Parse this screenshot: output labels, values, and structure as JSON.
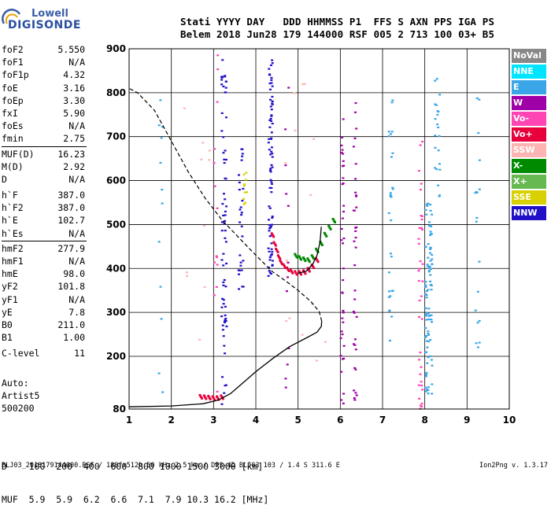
{
  "logo": {
    "line1": "Lowell",
    "line2": "DIGISONDE"
  },
  "header": {
    "line1": "Stati YYYY DAY   DDD HHMMSS P1  FFS S AXN PPS IGA PS",
    "line2": "Belem 2018 Jun28 179 144000 RSF 005 2 713 100 03+ B5"
  },
  "params": {
    "group1": [
      {
        "label": "foF2",
        "value": "5.550"
      },
      {
        "label": "foF1",
        "value": "N/A"
      },
      {
        "label": "foF1p",
        "value": "4.32"
      },
      {
        "label": "foE",
        "value": "3.16"
      },
      {
        "label": "foEp",
        "value": "3.30"
      },
      {
        "label": "fxI",
        "value": "5.90"
      },
      {
        "label": "foEs",
        "value": "N/A"
      },
      {
        "label": "fmin",
        "value": "2.75"
      }
    ],
    "group2": [
      {
        "label": "MUF(D)",
        "value": "16.23"
      },
      {
        "label": "M(D)",
        "value": "2.92"
      },
      {
        "label": "D",
        "value": "N/A"
      }
    ],
    "group3": [
      {
        "label": "h`F",
        "value": "387.0"
      },
      {
        "label": "h`F2",
        "value": "387.0"
      },
      {
        "label": "h`E",
        "value": "102.7"
      },
      {
        "label": "h`Es",
        "value": "N/A"
      }
    ],
    "group4": [
      {
        "label": "hmF2",
        "value": "277.9"
      },
      {
        "label": "hmF1",
        "value": "N/A"
      },
      {
        "label": "hmE",
        "value": "98.0"
      },
      {
        "label": "yF2",
        "value": "101.8"
      },
      {
        "label": "yF1",
        "value": "N/A"
      },
      {
        "label": "yE",
        "value": "7.8"
      },
      {
        "label": "B0",
        "value": "211.0"
      },
      {
        "label": "B1",
        "value": "1.00"
      }
    ],
    "group5": [
      {
        "label": "C-level",
        "value": "11"
      }
    ]
  },
  "auto": {
    "line1": "Auto:",
    "line2": "Artist5",
    "line3": "500200"
  },
  "legend": [
    {
      "label": "NoVal",
      "color": "#888888"
    },
    {
      "label": "NNE",
      "color": "#00e5ff"
    },
    {
      "label": "E",
      "color": "#3aa6e8"
    },
    {
      "label": "W",
      "color": "#a000a8"
    },
    {
      "label": "Vo-",
      "color": "#ff44b4"
    },
    {
      "label": "Vo+",
      "color": "#e8003c"
    },
    {
      "label": "SSW",
      "color": "#ffb4b4"
    },
    {
      "label": "X-",
      "color": "#008a00"
    },
    {
      "label": "X+",
      "color": "#66b850"
    },
    {
      "label": "SSE",
      "color": "#d8d000"
    },
    {
      "label": "NNW",
      "color": "#2010c8"
    }
  ],
  "dmuf": {
    "line1": "D    100  200  400  600  800 1000 1500 3000 [km]",
    "line2": "MUF  5.9  5.9  6.2  6.6  7.1  7.9 10.3 16.2 [MHz]"
  },
  "footer": "BLJ03_2018179144000.RSF / 180fx512h 50 kHz 2.5 km / DPS-4D BLJ03 103 / 1.4 S 311.6 E",
  "version": "Ion2Png v. 1.3.17",
  "chart_data": {
    "type": "scatter",
    "xlim": [
      1,
      10
    ],
    "ylim": [
      80,
      900
    ],
    "x_ticks": [
      1,
      2,
      3,
      4,
      5,
      6,
      7,
      8,
      9,
      10
    ],
    "y_ticks": [
      80,
      200,
      300,
      400,
      500,
      600,
      700,
      800,
      900
    ],
    "grid": true,
    "traces": [
      {
        "name": "O-trace F layer",
        "color": "#e8003c",
        "points": [
          [
            4.4,
            475
          ],
          [
            4.45,
            455
          ],
          [
            4.5,
            440
          ],
          [
            4.55,
            425
          ],
          [
            4.6,
            413
          ],
          [
            4.68,
            404
          ],
          [
            4.76,
            397
          ],
          [
            4.85,
            392
          ],
          [
            4.95,
            389
          ],
          [
            5.05,
            389
          ],
          [
            5.15,
            391
          ],
          [
            5.25,
            396
          ],
          [
            5.35,
            404
          ],
          [
            5.45,
            418
          ]
        ]
      },
      {
        "name": "X-trace F layer",
        "color": "#008a00",
        "points": [
          [
            4.95,
            428
          ],
          [
            5.05,
            423
          ],
          [
            5.15,
            420
          ],
          [
            5.25,
            418
          ],
          [
            5.35,
            425
          ],
          [
            5.45,
            440
          ],
          [
            5.55,
            456
          ],
          [
            5.65,
            476
          ],
          [
            5.75,
            492
          ],
          [
            5.85,
            508
          ]
        ]
      },
      {
        "name": "O-trace E layer",
        "color": "#e8003c",
        "points": [
          [
            2.7,
            107
          ],
          [
            2.8,
            106
          ],
          [
            2.9,
            105
          ],
          [
            3.0,
            104
          ],
          [
            3.1,
            104
          ],
          [
            3.2,
            106
          ]
        ]
      }
    ],
    "profile_solid": [
      [
        1.0,
        85
      ],
      [
        2.0,
        87
      ],
      [
        2.75,
        92
      ],
      [
        3.1,
        100
      ],
      [
        3.4,
        115
      ],
      [
        3.7,
        140
      ],
      [
        4.0,
        165
      ],
      [
        4.4,
        195
      ],
      [
        4.8,
        222
      ],
      [
        5.2,
        242
      ],
      [
        5.45,
        255
      ],
      [
        5.55,
        268
      ],
      [
        5.56,
        280
      ]
    ],
    "profile_dashed": [
      [
        5.56,
        280
      ],
      [
        5.5,
        302
      ],
      [
        5.3,
        325
      ],
      [
        5.0,
        350
      ],
      [
        4.7,
        372
      ],
      [
        4.4,
        392
      ],
      [
        4.0,
        430
      ],
      [
        3.6,
        470
      ],
      [
        3.2,
        510
      ],
      [
        2.8,
        560
      ],
      [
        2.4,
        620
      ],
      [
        2.0,
        690
      ],
      [
        1.6,
        760
      ],
      [
        1.2,
        800
      ],
      [
        1.0,
        810
      ]
    ],
    "leading_edge": [
      [
        5.0,
        389
      ],
      [
        5.2,
        394
      ],
      [
        5.35,
        410
      ],
      [
        5.45,
        430
      ],
      [
        5.52,
        460
      ],
      [
        5.55,
        495
      ]
    ]
  }
}
